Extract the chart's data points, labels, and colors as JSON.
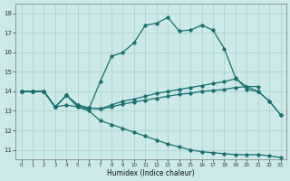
{
  "background_color": "#cce8e8",
  "grid_color": "#aacfcf",
  "line_color": "#1a7070",
  "xlabel": "Humidex (Indice chaleur)",
  "xlim": [
    -0.5,
    23.5
  ],
  "ylim": [
    10.5,
    18.5
  ],
  "yticks": [
    11,
    12,
    13,
    14,
    15,
    16,
    17,
    18
  ],
  "xticks": [
    0,
    1,
    2,
    3,
    4,
    5,
    6,
    7,
    8,
    9,
    10,
    11,
    12,
    13,
    14,
    15,
    16,
    17,
    18,
    19,
    20,
    21,
    22,
    23
  ],
  "line_top_x": [
    0,
    1,
    2,
    3,
    4,
    5,
    6,
    7,
    8,
    9,
    10,
    11,
    12,
    13,
    14,
    15,
    16,
    17,
    18,
    19,
    20,
    21,
    22,
    23
  ],
  "line_top_y": [
    14.0,
    14.0,
    14.0,
    13.2,
    13.8,
    13.2,
    13.1,
    14.5,
    15.8,
    16.0,
    16.5,
    17.4,
    17.5,
    17.8,
    17.1,
    17.15,
    17.4,
    17.15,
    16.2,
    14.7,
    14.1,
    14.0,
    13.5,
    12.8
  ],
  "line_mid_upper_x": [
    0,
    1,
    2,
    3,
    4,
    5,
    6,
    7,
    8,
    9,
    10,
    11,
    12,
    13,
    14,
    15,
    16,
    17,
    18,
    19,
    20,
    21,
    22,
    23
  ],
  "line_mid_upper_y": [
    14.0,
    14.0,
    14.0,
    13.2,
    13.8,
    13.3,
    13.15,
    13.1,
    13.3,
    13.5,
    13.6,
    13.75,
    13.9,
    14.0,
    14.1,
    14.2,
    14.3,
    14.4,
    14.5,
    14.65,
    14.25,
    14.0,
    13.5,
    12.8
  ],
  "line_mid_lower_x": [
    0,
    1,
    2,
    3,
    4,
    5,
    6,
    7,
    8,
    9,
    10,
    11,
    12,
    13,
    14,
    15,
    16,
    17,
    18,
    19,
    20,
    21
  ],
  "line_mid_lower_y": [
    14.0,
    14.0,
    14.0,
    13.2,
    13.8,
    13.3,
    13.15,
    13.1,
    13.2,
    13.35,
    13.45,
    13.55,
    13.65,
    13.75,
    13.85,
    13.9,
    14.0,
    14.05,
    14.1,
    14.2,
    14.25,
    14.25
  ],
  "line_bot_x": [
    0,
    1,
    2,
    3,
    4,
    5,
    6,
    7,
    8,
    9,
    10,
    11,
    12,
    13,
    14,
    15,
    16,
    17,
    18,
    19,
    20,
    21,
    22,
    23
  ],
  "line_bot_y": [
    14.0,
    14.0,
    14.0,
    13.2,
    13.3,
    13.2,
    13.0,
    12.5,
    12.3,
    12.1,
    11.9,
    11.7,
    11.5,
    11.3,
    11.15,
    11.0,
    10.9,
    10.85,
    10.8,
    10.75,
    10.75,
    10.75,
    10.7,
    10.6
  ]
}
